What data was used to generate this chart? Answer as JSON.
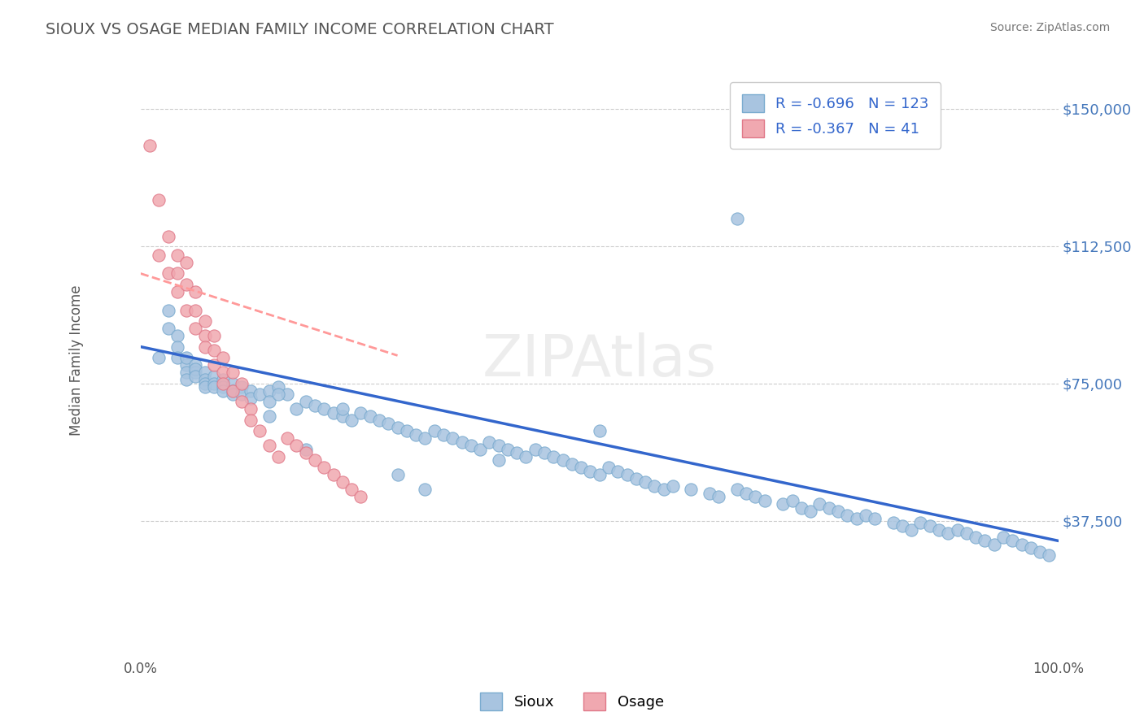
{
  "title": "SIOUX VS OSAGE MEDIAN FAMILY INCOME CORRELATION CHART",
  "source_text": "Source: ZipAtlas.com",
  "xlabel": "",
  "ylabel": "Median Family Income",
  "xlim": [
    0.0,
    1.0
  ],
  "ylim": [
    0,
    162500
  ],
  "yticks": [
    0,
    37500,
    75000,
    112500,
    150000
  ],
  "ytick_labels": [
    "",
    "$37,500",
    "$75,000",
    "$112,500",
    "$150,000"
  ],
  "xtick_labels": [
    "0.0%",
    "100.0%"
  ],
  "background_color": "#ffffff",
  "grid_color": "#cccccc",
  "title_color": "#555555",
  "sioux_color": "#a8c4e0",
  "sioux_edge_color": "#7aabcf",
  "osage_color": "#f0a8b0",
  "osage_edge_color": "#e07888",
  "sioux_line_color": "#3366cc",
  "osage_line_color": "#ff9999",
  "R_sioux": -0.696,
  "N_sioux": 123,
  "R_osage": -0.367,
  "N_osage": 41,
  "sioux_x": [
    0.02,
    0.03,
    0.03,
    0.04,
    0.04,
    0.04,
    0.05,
    0.05,
    0.05,
    0.05,
    0.06,
    0.06,
    0.06,
    0.06,
    0.07,
    0.07,
    0.07,
    0.07,
    0.08,
    0.08,
    0.08,
    0.09,
    0.09,
    0.09,
    0.1,
    0.1,
    0.1,
    0.11,
    0.11,
    0.12,
    0.12,
    0.13,
    0.14,
    0.14,
    0.15,
    0.16,
    0.17,
    0.18,
    0.19,
    0.2,
    0.21,
    0.22,
    0.22,
    0.23,
    0.24,
    0.25,
    0.26,
    0.27,
    0.28,
    0.29,
    0.3,
    0.31,
    0.32,
    0.33,
    0.34,
    0.35,
    0.36,
    0.37,
    0.38,
    0.39,
    0.4,
    0.41,
    0.42,
    0.43,
    0.44,
    0.45,
    0.46,
    0.47,
    0.48,
    0.49,
    0.5,
    0.51,
    0.52,
    0.53,
    0.54,
    0.55,
    0.56,
    0.57,
    0.58,
    0.6,
    0.62,
    0.63,
    0.65,
    0.66,
    0.67,
    0.68,
    0.7,
    0.71,
    0.72,
    0.73,
    0.74,
    0.75,
    0.76,
    0.77,
    0.78,
    0.79,
    0.8,
    0.82,
    0.83,
    0.84,
    0.85,
    0.86,
    0.87,
    0.88,
    0.89,
    0.9,
    0.91,
    0.92,
    0.93,
    0.94,
    0.95,
    0.96,
    0.97,
    0.98,
    0.99,
    0.65,
    0.39,
    0.31,
    0.15,
    0.28,
    0.18,
    0.14,
    0.5
  ],
  "sioux_y": [
    82000,
    95000,
    90000,
    88000,
    85000,
    82000,
    80000,
    78000,
    82000,
    76000,
    80000,
    78000,
    79000,
    77000,
    78000,
    76000,
    75000,
    74000,
    77000,
    75000,
    74000,
    76000,
    74000,
    73000,
    75000,
    73000,
    72000,
    74000,
    72000,
    73000,
    71000,
    72000,
    73000,
    70000,
    74000,
    72000,
    68000,
    70000,
    69000,
    68000,
    67000,
    66000,
    68000,
    65000,
    67000,
    66000,
    65000,
    64000,
    63000,
    62000,
    61000,
    60000,
    62000,
    61000,
    60000,
    59000,
    58000,
    57000,
    59000,
    58000,
    57000,
    56000,
    55000,
    57000,
    56000,
    55000,
    54000,
    53000,
    52000,
    51000,
    50000,
    52000,
    51000,
    50000,
    49000,
    48000,
    47000,
    46000,
    47000,
    46000,
    45000,
    44000,
    46000,
    45000,
    44000,
    43000,
    42000,
    43000,
    41000,
    40000,
    42000,
    41000,
    40000,
    39000,
    38000,
    39000,
    38000,
    37000,
    36000,
    35000,
    37000,
    36000,
    35000,
    34000,
    35000,
    34000,
    33000,
    32000,
    31000,
    33000,
    32000,
    31000,
    30000,
    29000,
    28000,
    120000,
    54000,
    46000,
    72000,
    50000,
    57000,
    66000,
    62000
  ],
  "osage_x": [
    0.01,
    0.02,
    0.02,
    0.03,
    0.03,
    0.04,
    0.04,
    0.04,
    0.05,
    0.05,
    0.05,
    0.06,
    0.06,
    0.06,
    0.07,
    0.07,
    0.07,
    0.08,
    0.08,
    0.08,
    0.09,
    0.09,
    0.09,
    0.1,
    0.1,
    0.11,
    0.11,
    0.12,
    0.12,
    0.13,
    0.14,
    0.15,
    0.16,
    0.17,
    0.18,
    0.19,
    0.2,
    0.21,
    0.22,
    0.23,
    0.24
  ],
  "osage_y": [
    140000,
    125000,
    110000,
    115000,
    105000,
    110000,
    105000,
    100000,
    108000,
    102000,
    95000,
    100000,
    95000,
    90000,
    92000,
    88000,
    85000,
    88000,
    84000,
    80000,
    82000,
    78000,
    75000,
    78000,
    73000,
    75000,
    70000,
    68000,
    65000,
    62000,
    58000,
    55000,
    60000,
    58000,
    56000,
    54000,
    52000,
    50000,
    48000,
    46000,
    44000
  ]
}
